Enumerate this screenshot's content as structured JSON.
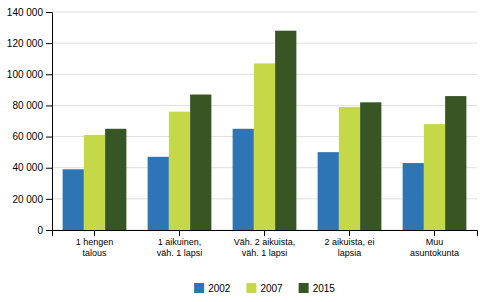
{
  "chart_data": {
    "type": "bar",
    "categories": [
      "1 hengen\ntalous",
      "1 aikuinen,\nväh. 1 lapsi",
      "Väh. 2 aikuista,\nväh. 1 lapsi",
      "2 aikuista, ei\nlapsia",
      "Muu\nasuntokunta"
    ],
    "series": [
      {
        "name": "2002",
        "color": "#2E75B6",
        "values": [
          39000,
          47000,
          65000,
          50000,
          43000
        ]
      },
      {
        "name": "2007",
        "color": "#C5D848",
        "values": [
          61000,
          76000,
          107000,
          79000,
          68000
        ]
      },
      {
        "name": "2015",
        "color": "#375623",
        "values": [
          65000,
          87000,
          128000,
          82000,
          86000
        ]
      }
    ],
    "ylim": [
      0,
      140000
    ],
    "yticks": [
      0,
      {
        "value": 20000,
        "label": "20 000"
      },
      {
        "value": 40000,
        "label": "40 000"
      },
      {
        "value": 60000,
        "label": "60 000"
      },
      {
        "value": 80000,
        "label": "80 000"
      },
      {
        "value": 100000,
        "label": "100 000"
      },
      {
        "value": 120000,
        "label": "120 000"
      },
      {
        "value": 140000,
        "label": "140 000"
      }
    ],
    "grid": true,
    "legend": "bottom"
  }
}
